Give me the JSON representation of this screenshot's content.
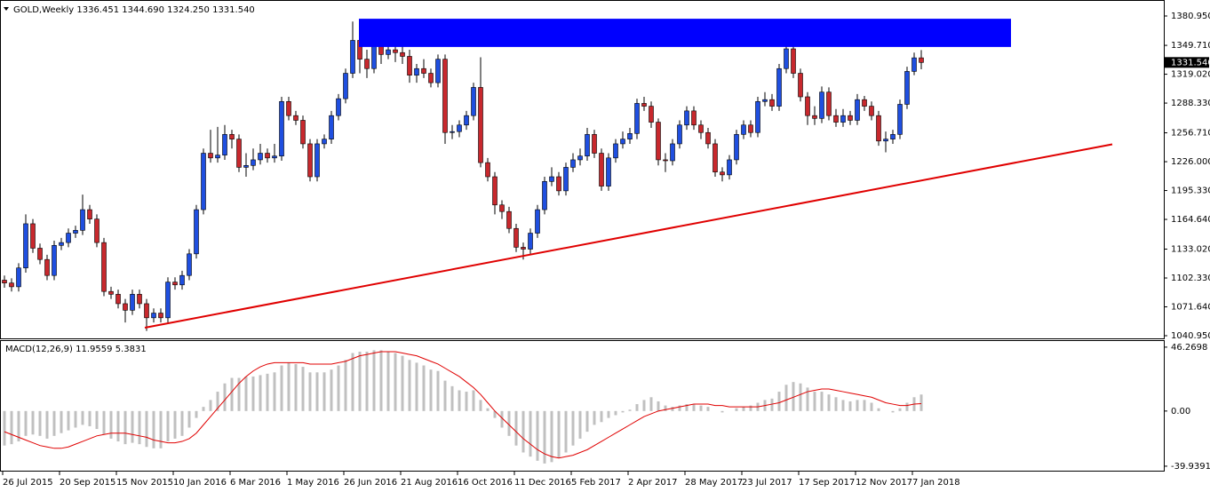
{
  "chart_data": [
    {
      "type": "candlestick",
      "title": "GOLD,Weekly",
      "last_labels": [
        "1336.451",
        "1344.690",
        "1324.250",
        "1331.540"
      ],
      "up_color": "#1f4fe0",
      "down_color": "#c8282d",
      "ylim": [
        1039.07,
        1397
      ],
      "yticks": [
        {
          "value": 1380.95,
          "label": "1380.950"
        },
        {
          "value": 1349.71,
          "label": "1349.710"
        },
        {
          "value": 1319.02,
          "label": "1319.020"
        },
        {
          "value": 1288.33,
          "label": "1288.330"
        },
        {
          "value": 1256.71,
          "label": "1256.710"
        },
        {
          "value": 1226,
          "label": "1226.000"
        },
        {
          "value": 1195.33,
          "label": "1195.330"
        },
        {
          "value": 1164.64,
          "label": "1164.640"
        },
        {
          "value": 1133.02,
          "label": "1133.020"
        },
        {
          "value": 1102.33,
          "label": "1102.330"
        },
        {
          "value": 1071.64,
          "label": "1071.640"
        },
        {
          "value": 1040.95,
          "label": "1040.950"
        }
      ],
      "x_labels": [
        "26 Jul 2015",
        "20 Sep 2015",
        "15 Nov 2015",
        "10 Jan 2016",
        "6 Mar 2016",
        "1 May 2016",
        "26 Jun 2016",
        "21 Aug 2016",
        "16 Oct 2016",
        "11 Dec 2016",
        "5 Feb 2017",
        "2 Apr 2017",
        "28 May 2017",
        "23 Jul 2017",
        "17 Sep 2017",
        "12 Nov 2017",
        "7 Jan 2018"
      ],
      "zone": {
        "high": 1378,
        "low": 1348,
        "color": "#0000ff"
      },
      "trendline": {
        "start": 1049.5,
        "end": 1244.5,
        "color": "#e00000"
      },
      "candles": [
        [
          1100,
          1105,
          1092,
          1097
        ],
        [
          1097,
          1102,
          1088,
          1093
        ],
        [
          1093,
          1118,
          1088,
          1113
        ],
        [
          1113,
          1170,
          1108,
          1160
        ],
        [
          1160,
          1165,
          1129,
          1134
        ],
        [
          1134,
          1139,
          1117,
          1122
        ],
        [
          1122,
          1127,
          1100,
          1105
        ],
        [
          1105,
          1142,
          1100,
          1137
        ],
        [
          1137,
          1145,
          1132,
          1140
        ],
        [
          1140,
          1155,
          1135,
          1150
        ],
        [
          1150,
          1158,
          1145,
          1153
        ],
        [
          1153,
          1191,
          1148,
          1175
        ],
        [
          1175,
          1180,
          1160,
          1165
        ],
        [
          1165,
          1170,
          1135,
          1140
        ],
        [
          1140,
          1145,
          1083,
          1088
        ],
        [
          1088,
          1093,
          1080,
          1085
        ],
        [
          1085,
          1090,
          1070,
          1075
        ],
        [
          1075,
          1080,
          1055,
          1068
        ],
        [
          1068,
          1090,
          1063,
          1085
        ],
        [
          1085,
          1090,
          1070,
          1075
        ],
        [
          1075,
          1080,
          1046,
          1060
        ],
        [
          1060,
          1070,
          1055,
          1065
        ],
        [
          1065,
          1070,
          1055,
          1060
        ],
        [
          1060,
          1103,
          1055,
          1098
        ],
        [
          1098,
          1103,
          1090,
          1095
        ],
        [
          1095,
          1110,
          1090,
          1105
        ],
        [
          1105,
          1133,
          1100,
          1128
        ],
        [
          1128,
          1180,
          1123,
          1175
        ],
        [
          1175,
          1240,
          1170,
          1235
        ],
        [
          1235,
          1260,
          1225,
          1230
        ],
        [
          1230,
          1263,
          1225,
          1233
        ],
        [
          1233,
          1265,
          1228,
          1255
        ],
        [
          1255,
          1260,
          1240,
          1250
        ],
        [
          1250,
          1255,
          1215,
          1220
        ],
        [
          1220,
          1235,
          1210,
          1222
        ],
        [
          1222,
          1240,
          1217,
          1228
        ],
        [
          1228,
          1245,
          1223,
          1235
        ],
        [
          1235,
          1240,
          1225,
          1230
        ],
        [
          1230,
          1245,
          1225,
          1232
        ],
        [
          1232,
          1295,
          1227,
          1290
        ],
        [
          1290,
          1295,
          1270,
          1275
        ],
        [
          1275,
          1280,
          1265,
          1270
        ],
        [
          1270,
          1275,
          1240,
          1245
        ],
        [
          1245,
          1250,
          1205,
          1210
        ],
        [
          1210,
          1250,
          1205,
          1245
        ],
        [
          1245,
          1255,
          1240,
          1250
        ],
        [
          1250,
          1280,
          1245,
          1275
        ],
        [
          1275,
          1298,
          1270,
          1293
        ],
        [
          1293,
          1325,
          1288,
          1320
        ],
        [
          1320,
          1375,
          1315,
          1355
        ],
        [
          1355,
          1365,
          1320,
          1335
        ],
        [
          1335,
          1345,
          1315,
          1325
        ],
        [
          1325,
          1375,
          1320,
          1350
        ],
        [
          1350,
          1358,
          1330,
          1340
        ],
        [
          1340,
          1355,
          1335,
          1345
        ],
        [
          1345,
          1350,
          1332,
          1342
        ],
        [
          1342,
          1352,
          1330,
          1338
        ],
        [
          1338,
          1345,
          1310,
          1318
        ],
        [
          1318,
          1330,
          1310,
          1325
        ],
        [
          1325,
          1335,
          1315,
          1320
        ],
        [
          1320,
          1325,
          1305,
          1310
        ],
        [
          1310,
          1340,
          1305,
          1335
        ],
        [
          1335,
          1340,
          1245,
          1257
        ],
        [
          1257,
          1265,
          1250,
          1258
        ],
        [
          1258,
          1270,
          1252,
          1265
        ],
        [
          1265,
          1280,
          1260,
          1275
        ],
        [
          1275,
          1310,
          1270,
          1305
        ],
        [
          1305,
          1337,
          1220,
          1225
        ],
        [
          1225,
          1230,
          1205,
          1210
        ],
        [
          1210,
          1215,
          1170,
          1180
        ],
        [
          1180,
          1185,
          1165,
          1173
        ],
        [
          1173,
          1178,
          1150,
          1155
        ],
        [
          1155,
          1160,
          1130,
          1135
        ],
        [
          1135,
          1140,
          1122,
          1133
        ],
        [
          1133,
          1155,
          1128,
          1150
        ],
        [
          1150,
          1180,
          1145,
          1175
        ],
        [
          1175,
          1210,
          1170,
          1205
        ],
        [
          1205,
          1220,
          1200,
          1210
        ],
        [
          1210,
          1215,
          1190,
          1195
        ],
        [
          1195,
          1225,
          1190,
          1220
        ],
        [
          1220,
          1235,
          1215,
          1228
        ],
        [
          1228,
          1240,
          1222,
          1232
        ],
        [
          1232,
          1262,
          1227,
          1255
        ],
        [
          1255,
          1260,
          1230,
          1235
        ],
        [
          1235,
          1240,
          1195,
          1200
        ],
        [
          1200,
          1235,
          1195,
          1230
        ],
        [
          1230,
          1250,
          1225,
          1245
        ],
        [
          1245,
          1258,
          1240,
          1250
        ],
        [
          1250,
          1262,
          1245,
          1256
        ],
        [
          1256,
          1293,
          1250,
          1288
        ],
        [
          1288,
          1295,
          1280,
          1285
        ],
        [
          1285,
          1290,
          1262,
          1268
        ],
        [
          1268,
          1272,
          1222,
          1228
        ],
        [
          1228,
          1235,
          1215,
          1227
        ],
        [
          1227,
          1250,
          1222,
          1245
        ],
        [
          1245,
          1270,
          1240,
          1265
        ],
        [
          1265,
          1285,
          1260,
          1280
        ],
        [
          1280,
          1285,
          1260,
          1265
        ],
        [
          1265,
          1270,
          1250,
          1257
        ],
        [
          1257,
          1262,
          1240,
          1245
        ],
        [
          1245,
          1250,
          1210,
          1215
        ],
        [
          1215,
          1220,
          1205,
          1212
        ],
        [
          1212,
          1233,
          1207,
          1228
        ],
        [
          1228,
          1260,
          1223,
          1255
        ],
        [
          1255,
          1270,
          1250,
          1265
        ],
        [
          1265,
          1270,
          1252,
          1257
        ],
        [
          1257,
          1295,
          1252,
          1290
        ],
        [
          1290,
          1300,
          1285,
          1292
        ],
        [
          1292,
          1298,
          1280,
          1285
        ],
        [
          1285,
          1330,
          1280,
          1325
        ],
        [
          1325,
          1357,
          1320,
          1346
        ],
        [
          1346,
          1350,
          1315,
          1320
        ],
        [
          1320,
          1325,
          1290,
          1295
        ],
        [
          1295,
          1300,
          1265,
          1275
        ],
        [
          1275,
          1285,
          1265,
          1272
        ],
        [
          1272,
          1306,
          1267,
          1300
        ],
        [
          1300,
          1305,
          1270,
          1275
        ],
        [
          1275,
          1282,
          1263,
          1268
        ],
        [
          1268,
          1282,
          1263,
          1275
        ],
        [
          1275,
          1280,
          1265,
          1270
        ],
        [
          1270,
          1298,
          1265,
          1292
        ],
        [
          1292,
          1296,
          1280,
          1285
        ],
        [
          1285,
          1290,
          1270,
          1275
        ],
        [
          1275,
          1280,
          1243,
          1248
        ],
        [
          1248,
          1258,
          1236,
          1250
        ],
        [
          1250,
          1260,
          1245,
          1255
        ],
        [
          1255,
          1292,
          1250,
          1287
        ],
        [
          1287,
          1327,
          1282,
          1322
        ],
        [
          1322,
          1342,
          1318,
          1336.451
        ],
        [
          1336.451,
          1344.69,
          1324.25,
          1331.54
        ]
      ]
    },
    {
      "type": "macd",
      "title": "MACD(12,26,9)",
      "ylim": [
        -43.2,
        50.7
      ],
      "yticks": [
        46.2698,
        {
          "value": 0,
          "label": "0.00"
        },
        -39.9391
      ],
      "series": [
        {
          "color": "#c0c0c0",
          "values": [
            -25,
            -24,
            -22,
            -18,
            -17,
            -18,
            -20,
            -18,
            -16,
            -14,
            -12,
            -10,
            -11,
            -13,
            -17,
            -20,
            -22,
            -24,
            -23,
            -24,
            -26,
            -27,
            -27,
            -22,
            -20,
            -18,
            -12,
            -5,
            3,
            8,
            14,
            20,
            24,
            24,
            25,
            25,
            26,
            27,
            28,
            33,
            35,
            34,
            32,
            28,
            28,
            28,
            30,
            33,
            37,
            42,
            43,
            43,
            44,
            44,
            43,
            42,
            40,
            37,
            35,
            33,
            30,
            29,
            22,
            18,
            15,
            14,
            15,
            8,
            2,
            -5,
            -12,
            -18,
            -25,
            -30,
            -33,
            -36,
            -38,
            -37,
            -34,
            -30,
            -25,
            -20,
            -15,
            -10,
            -8,
            -5,
            -3,
            -1,
            1,
            5,
            8,
            10,
            7,
            4,
            3,
            4,
            5,
            5,
            4,
            3,
            0,
            -1,
            0,
            2,
            3,
            4,
            6,
            8,
            9,
            14,
            19,
            21,
            20,
            17,
            14,
            14,
            12,
            10,
            8,
            7,
            8,
            8,
            6,
            2,
            0,
            -1,
            2,
            6,
            10,
            11.9559
          ]
        },
        {
          "color": "#e00000",
          "values": [
            -15,
            -17,
            -19,
            -21,
            -23,
            -25,
            -26,
            -27,
            -27,
            -26,
            -24,
            -22,
            -20,
            -18,
            -17,
            -16,
            -16,
            -16,
            -17,
            -18,
            -19,
            -21,
            -22,
            -23,
            -23,
            -22,
            -20,
            -16,
            -10,
            -4,
            2,
            8,
            14,
            20,
            25,
            29,
            32,
            34,
            35,
            35,
            35,
            35,
            35,
            34,
            34,
            34,
            34,
            35,
            36,
            38,
            40,
            41,
            42,
            43,
            43,
            43,
            42,
            41,
            40,
            38,
            36,
            34,
            31,
            28,
            25,
            21,
            17,
            12,
            6,
            0,
            -5,
            -10,
            -15,
            -20,
            -24,
            -28,
            -31,
            -33,
            -34,
            -33,
            -32,
            -30,
            -28,
            -25,
            -22,
            -19,
            -16,
            -13,
            -10,
            -7,
            -4,
            -2,
            0,
            1,
            2,
            3,
            4,
            5,
            5,
            5,
            4,
            4,
            3,
            3,
            3,
            3,
            3,
            4,
            5,
            6,
            8,
            10,
            12,
            14,
            15,
            16,
            16,
            15,
            14,
            13,
            12,
            11,
            10,
            8,
            6,
            5,
            4,
            4,
            5,
            5.3831
          ]
        }
      ]
    }
  ]
}
